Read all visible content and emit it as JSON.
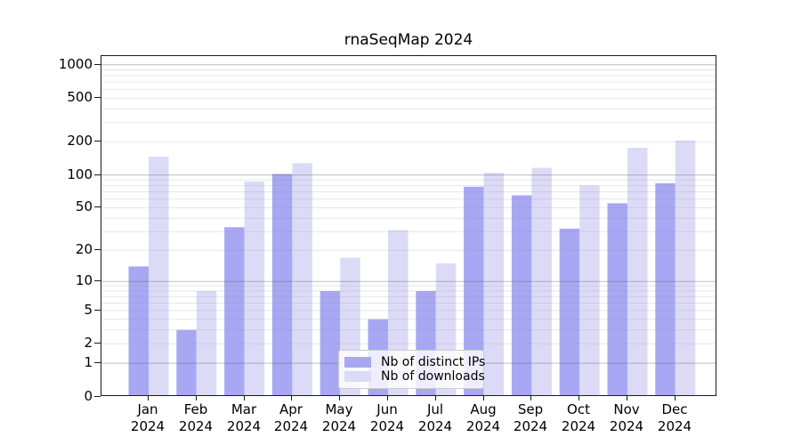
{
  "chart_data": {
    "type": "bar",
    "title": "rnaSeqMap 2024",
    "categories": [
      "Jan",
      "Feb",
      "Mar",
      "Apr",
      "May",
      "Jun",
      "Jul",
      "Aug",
      "Sep",
      "Oct",
      "Nov",
      "Dec"
    ],
    "year": "2024",
    "series": [
      {
        "name": "Nb of distinct IPs",
        "color": "#a7a7f3",
        "values": [
          14,
          3,
          33,
          102,
          8,
          4,
          8,
          78,
          65,
          32,
          55,
          84
        ]
      },
      {
        "name": "Nb of downloads",
        "color": "#dbdbf8",
        "values": [
          147,
          8,
          87,
          128,
          17,
          31,
          15,
          105,
          116,
          80,
          177,
          206
        ]
      }
    ],
    "y_scale": "log1p",
    "y_ticks": [
      0,
      1,
      2,
      5,
      10,
      20,
      50,
      100,
      200,
      500,
      1000
    ],
    "y_max": 1200,
    "xlabel": "",
    "ylabel": "",
    "grid": true,
    "grid_major_color": "#c2c2c2",
    "grid_minor_color": "#eaeaea",
    "axis_color": "#1a1a1a",
    "legend_position": "lower-center"
  }
}
